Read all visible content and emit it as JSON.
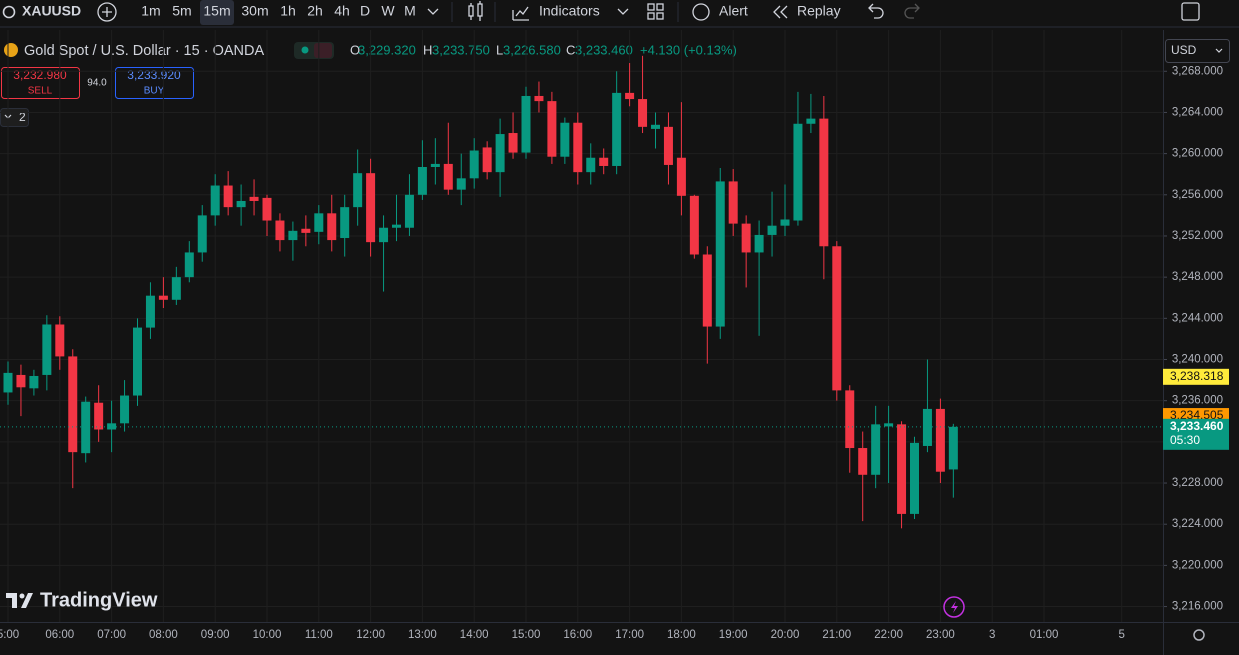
{
  "toolbar": {
    "symbol": "XAUUSD",
    "intervals": [
      "1m",
      "5m",
      "15m",
      "30m",
      "1h",
      "2h",
      "4h",
      "D",
      "W",
      "M"
    ],
    "indicators": "Indicators",
    "alert": "Alert",
    "replay": "Replay"
  },
  "legend": {
    "title": "Gold Spot / U.S. Dollar · 15 · OANDA",
    "o_label": "O",
    "o": "3,229.320",
    "h_label": "H",
    "h": "3,233.750",
    "l_label": "L",
    "l": "3,226.580",
    "c_label": "C",
    "c": "3,233.460",
    "change": "+4.130 (+0.13%)"
  },
  "trade": {
    "sell_price": "3,232.980",
    "sell": "SELL",
    "spread": "94.0",
    "buy_price": "3,233.920",
    "buy": "BUY"
  },
  "badge": "2",
  "currency": "USD",
  "brand": "TradingView",
  "chart_data": {
    "type": "candlestick",
    "up_color": "#089981",
    "down_color": "#f23645",
    "grid": true,
    "categories": [
      "5:00",
      null,
      null,
      null,
      "06:00",
      null,
      null,
      null,
      "07:00",
      null,
      null,
      null,
      "08:00",
      null,
      null,
      null,
      "09:00",
      null,
      null,
      null,
      "10:00",
      null,
      null,
      null,
      "11:00",
      null,
      null,
      null,
      "12:00",
      null,
      null,
      null,
      "13:00",
      null,
      null,
      null,
      "14:00",
      null,
      null,
      null,
      "15:00",
      null,
      null,
      null,
      "16:00",
      null,
      null,
      null,
      "17:00",
      null,
      null,
      null,
      "18:00",
      null,
      null,
      null,
      "19:00",
      null,
      null,
      null,
      "20:00",
      null,
      null,
      null,
      "21:00",
      null,
      null,
      null,
      "22:00",
      null,
      null,
      null,
      "23:00",
      null,
      null,
      null,
      "3",
      null,
      null,
      null,
      "01:00",
      null,
      null,
      null,
      null,
      null,
      "5"
    ],
    "open": [
      3236.8,
      3238.5,
      3237.2,
      3238.5,
      3243.4,
      3240.3,
      3230.9,
      3235.8,
      3233.2,
      3233.8,
      3236.5,
      3243.1,
      3246.2,
      3245.8,
      3248.0,
      3250.4,
      3254.0,
      3256.9,
      3254.8,
      3255.8,
      3255.7,
      3253.5,
      3251.6,
      3252.7,
      3252.4,
      3254.2,
      3251.8,
      3254.8,
      3258.1,
      3251.4,
      3252.8,
      3252.8,
      3256.0,
      3258.7,
      3259.0,
      3256.5,
      3257.6,
      3260.6,
      3258.2,
      3262.0,
      3260.1,
      3265.6,
      3265.1,
      3259.7,
      3263.0,
      3258.2,
      3259.6,
      3258.8,
      3265.9,
      3265.3,
      3262.4,
      3262.6,
      3259.6,
      3255.9,
      3250.2,
      3243.2,
      3257.3,
      3253.2,
      3250.4,
      3252.1,
      3253.0,
      3253.5,
      3262.9,
      3263.4,
      3251.0,
      3237.0,
      3231.4,
      3228.8,
      3233.5,
      3233.7,
      3225.0,
      3231.6,
      3235.2,
      3229.32,
      null,
      null,
      null,
      null,
      null,
      null,
      null,
      null,
      null,
      null,
      null,
      null,
      null
    ],
    "high": [
      3239.8,
      3239.5,
      3239.0,
      3244.3,
      3244.2,
      3241.0,
      3236.4,
      3237.5,
      3236.0,
      3238.0,
      3244.0,
      3247.5,
      3248.0,
      3249.0,
      3251.5,
      3255.0,
      3258.0,
      3258.3,
      3257.0,
      3257.5,
      3256.0,
      3254.2,
      3253.4,
      3254.0,
      3255.0,
      3256.0,
      3256.0,
      3260.4,
      3259.5,
      3254.0,
      3256.0,
      3258.0,
      3261.3,
      3261.5,
      3263.0,
      3260.0,
      3261.5,
      3261.2,
      3263.4,
      3264.0,
      3266.5,
      3267.0,
      3266.0,
      3263.5,
      3264.0,
      3261.0,
      3260.5,
      3268.0,
      3268.8,
      3269.5,
      3264.0,
      3264.0,
      3265.0,
      3256.0,
      3251.0,
      3258.6,
      3258.5,
      3254.0,
      3253.5,
      3256.3,
      3257.0,
      3266.0,
      3265.8,
      3265.6,
      3251.5,
      3237.5,
      3233.0,
      3235.5,
      3235.5,
      3234.0,
      3232.5,
      3240.0,
      3236.2,
      3233.75,
      null,
      null,
      null,
      null,
      null,
      null,
      null,
      null,
      null,
      null,
      null,
      null,
      null
    ],
    "low": [
      3235.6,
      3234.5,
      3236.5,
      3237.0,
      3239.0,
      3227.5,
      3230.0,
      3232.0,
      3231.0,
      3233.0,
      3235.5,
      3242.0,
      3245.0,
      3245.3,
      3247.5,
      3249.5,
      3253.0,
      3254.0,
      3253.0,
      3254.0,
      3252.0,
      3250.5,
      3249.6,
      3251.0,
      3251.2,
      3250.5,
      3250.0,
      3253.0,
      3250.0,
      3246.6,
      3251.5,
      3252.0,
      3255.5,
      3257.0,
      3256.0,
      3255.0,
      3256.6,
      3257.5,
      3255.8,
      3259.5,
      3259.5,
      3264.0,
      3259.0,
      3259.0,
      3257.0,
      3257.0,
      3258.0,
      3258.0,
      3264.6,
      3262.0,
      3260.5,
      3257.0,
      3254.0,
      3249.8,
      3239.6,
      3242.0,
      3252.0,
      3247.0,
      3242.3,
      3250.0,
      3252.0,
      3253.0,
      3262.0,
      3247.8,
      3236.0,
      3229.0,
      3224.3,
      3227.5,
      3228.0,
      3223.6,
      3224.5,
      3231.0,
      3228.0,
      3226.58,
      null,
      null,
      null,
      null,
      null,
      null,
      null,
      null,
      null,
      null,
      null,
      null,
      null
    ],
    "close": [
      3238.7,
      3237.3,
      3238.4,
      3243.4,
      3240.3,
      3231.0,
      3235.9,
      3233.2,
      3233.8,
      3236.5,
      3243.1,
      3246.2,
      3245.8,
      3248.0,
      3250.4,
      3254.0,
      3256.9,
      3254.8,
      3255.4,
      3255.4,
      3253.5,
      3251.6,
      3252.5,
      3252.3,
      3254.2,
      3251.6,
      3254.8,
      3258.1,
      3251.4,
      3252.8,
      3253.1,
      3256.0,
      3258.7,
      3259.0,
      3256.5,
      3257.6,
      3260.3,
      3258.2,
      3261.9,
      3260.1,
      3265.6,
      3265.1,
      3259.7,
      3263.0,
      3258.2,
      3259.6,
      3258.8,
      3265.9,
      3265.3,
      3262.6,
      3262.8,
      3258.9,
      3255.9,
      3250.2,
      3243.2,
      3257.3,
      3253.2,
      3250.4,
      3252.1,
      3253.0,
      3253.6,
      3262.9,
      3263.4,
      3251.0,
      3237.0,
      3231.4,
      3228.8,
      3233.7,
      3233.8,
      3225.0,
      3231.9,
      3235.2,
      3229.1,
      3233.46,
      null,
      null,
      null,
      null,
      null,
      null,
      null,
      null,
      null,
      null,
      null,
      null,
      null
    ],
    "ylim": [
      3214.5,
      3268.9
    ],
    "yticks": [
      {
        "value": 3216,
        "label": "3,216.000"
      },
      {
        "value": 3220,
        "label": "3,220.000"
      },
      {
        "value": 3224,
        "label": "3,224.000"
      },
      {
        "value": 3228,
        "label": "3,228.000"
      },
      {
        "value": 3232,
        "label": "3,232.000"
      },
      {
        "value": 3236,
        "label": "3,236.000"
      },
      {
        "value": 3240,
        "label": "3,240.000"
      },
      {
        "value": 3244,
        "label": "3,244.000"
      },
      {
        "value": 3248,
        "label": "3,248.000"
      },
      {
        "value": 3252,
        "label": "3,252.000"
      },
      {
        "value": 3256,
        "label": "3,256.000"
      },
      {
        "value": 3260,
        "label": "3,260.000"
      },
      {
        "value": 3264,
        "label": "3,264.000"
      },
      {
        "value": 3268,
        "label": "3,268.000"
      }
    ],
    "price_lines": [
      {
        "value": 3238.318,
        "label": "3,238.318",
        "color": "#ffeb3b"
      },
      {
        "value": 3234.505,
        "label": "3,234.505",
        "color": "#ff9800"
      },
      {
        "value": 3233.46,
        "label": "3,233.460",
        "color": "#089981",
        "countdown": "05:30"
      }
    ]
  }
}
